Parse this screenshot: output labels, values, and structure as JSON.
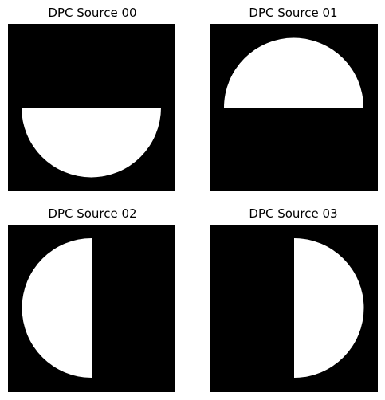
{
  "panels": [
    {
      "title": "DPC Source 00",
      "half": "bottom",
      "fill": "#ffffff",
      "background": "#000000"
    },
    {
      "title": "DPC Source 01",
      "half": "top",
      "fill": "#ffffff",
      "background": "#000000"
    },
    {
      "title": "DPC Source 02",
      "half": "left",
      "fill": "#ffffff",
      "background": "#000000"
    },
    {
      "title": "DPC Source 03",
      "half": "right",
      "fill": "#ffffff",
      "background": "#000000"
    }
  ]
}
